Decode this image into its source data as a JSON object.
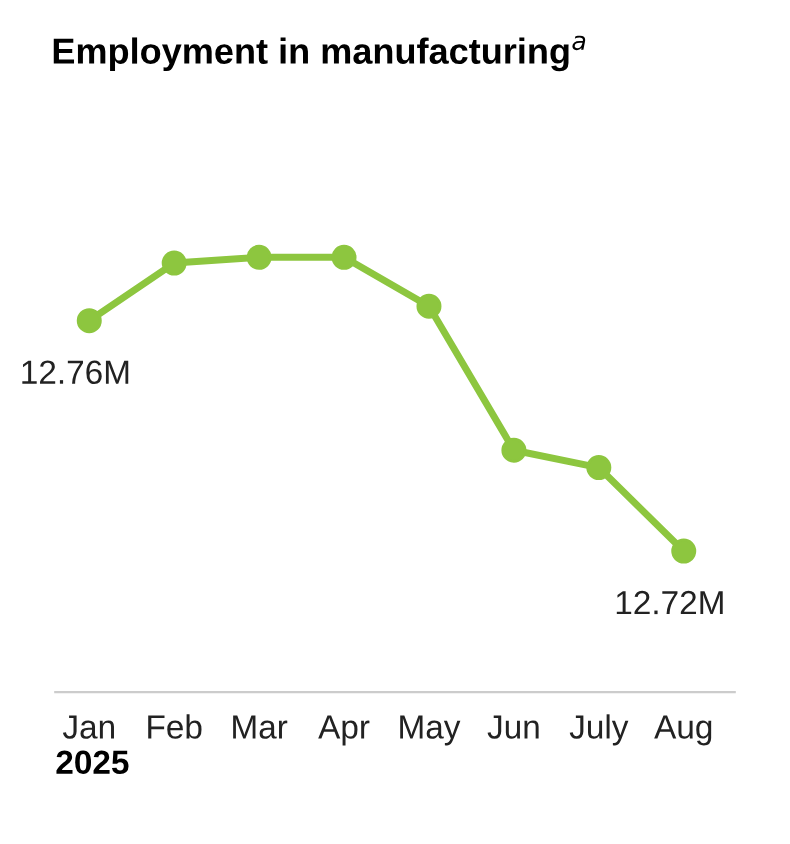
{
  "chart_data": {
    "type": "line",
    "title": "Employment in manufacturing$^{a}$",
    "xlabel": "2025",
    "categories": [
      "Jan",
      "Feb",
      "Mar",
      "Apr",
      "May",
      "Jun",
      "July",
      "Aug"
    ],
    "series": [
      {
        "color": "#8dc63f",
        "values": [
          12.76,
          12.77,
          12.771,
          12.771,
          12.7625,
          12.7375,
          12.7345,
          12.72
        ],
        "value_labels": [
          "12.76M",
          null,
          null,
          null,
          null,
          null,
          null,
          "12.72M"
        ]
      }
    ],
    "marker": "circle",
    "line_style": "solid",
    "grid": false,
    "legend": false,
    "tick_labels": "x"
  }
}
